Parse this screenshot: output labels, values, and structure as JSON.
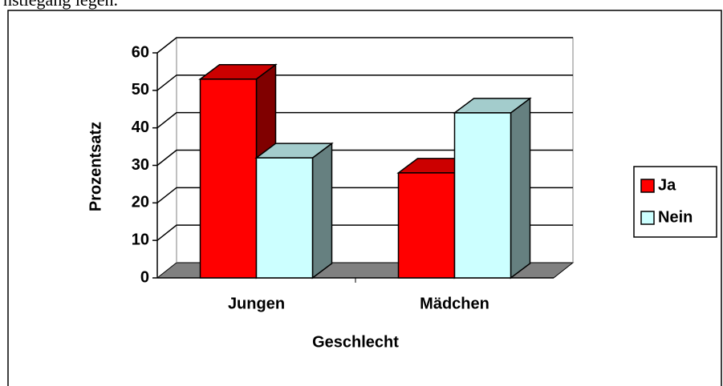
{
  "page_text": "nstiegang legen.",
  "chart_data": {
    "type": "bar3d",
    "x_label": "Geschlecht",
    "y_label": "Prozentsatz",
    "categories": [
      "Jungen",
      "Mädchen"
    ],
    "series": [
      {
        "name": "Ja",
        "color": "#ff0000",
        "values": [
          53,
          28
        ]
      },
      {
        "name": "Nein",
        "color": "#ccffff",
        "values": [
          32,
          44
        ]
      }
    ],
    "ylim": [
      0,
      60
    ],
    "yticks": [
      0,
      10,
      20,
      30,
      40,
      50,
      60
    ],
    "grid": true,
    "legend": "right"
  }
}
